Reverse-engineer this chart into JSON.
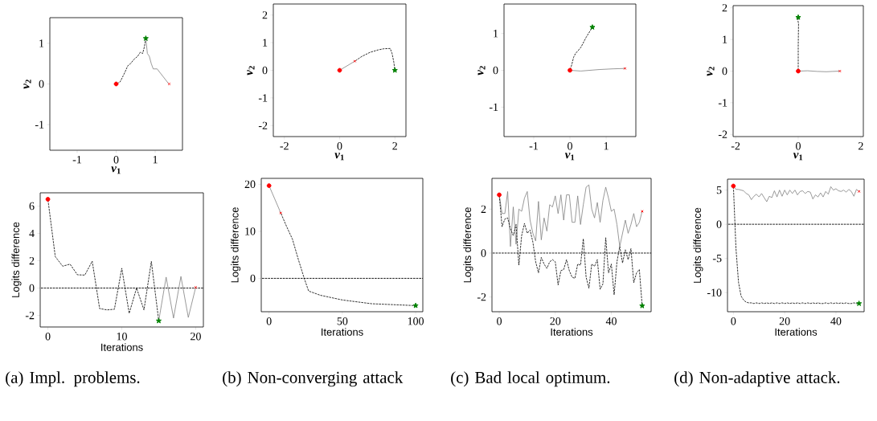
{
  "chart_data": [
    {
      "type": "line",
      "xlabel": "*v*$_{1}$",
      "ylabel": "*v*$_{2}$",
      "xlim": [
        -1.7,
        1.7
      ],
      "ylim": [
        -1.63,
        1.63
      ],
      "xticks": [
        -1,
        0,
        1
      ],
      "yticks": [
        -1,
        0,
        1
      ],
      "series": [
        {
          "type": "line",
          "color": "#808080",
          "line_style": "solid",
          "x": [
            0.76,
            0.8,
            0.85,
            0.9,
            0.95,
            1.05,
            1.35
          ],
          "values": [
            1.12,
            0.75,
            0.68,
            0.5,
            0.37,
            0.37,
            0.0
          ]
        },
        {
          "type": "line",
          "color": "#000000",
          "line_style": "dashed",
          "x": [
            0,
            0.1,
            0.18,
            0.22,
            0.3,
            0.37,
            0.45,
            0.55,
            0.62,
            0.68,
            0.72,
            0.76
          ],
          "values": [
            0,
            0.05,
            0.2,
            0.28,
            0.45,
            0.5,
            0.6,
            0.68,
            0.78,
            0.75,
            0.9,
            1.12
          ]
        },
        {
          "type": "scatter",
          "color": "#ff0000",
          "marker": "circle",
          "x": [
            0
          ],
          "values": [
            0
          ]
        },
        {
          "type": "scatter",
          "color": "#008000",
          "marker": "star",
          "x": [
            0.76
          ],
          "values": [
            1.12
          ]
        },
        {
          "type": "scatter",
          "color": "#ff0000",
          "marker": "cross",
          "x": [
            1.36
          ],
          "values": [
            0
          ]
        }
      ]
    },
    {
      "type": "line",
      "xlabel": "*v*$_{1}$",
      "ylabel": "*v*$_{2}$",
      "xlim": [
        -2.4,
        2.4
      ],
      "ylim": [
        -2.4,
        2.4
      ],
      "xticks": [
        -2,
        0,
        2
      ],
      "yticks": [
        -2,
        -1,
        0,
        1,
        2
      ],
      "series": [
        {
          "type": "line",
          "color": "#808080",
          "line_style": "solid",
          "x": [
            0,
            0.55
          ],
          "values": [
            0,
            0.33
          ]
        },
        {
          "type": "line",
          "color": "#000000",
          "line_style": "dashed",
          "x": [
            0.55,
            0.8,
            1.1,
            1.4,
            1.6,
            1.83,
            1.9,
            1.96,
            2.0
          ],
          "values": [
            0.33,
            0.5,
            0.65,
            0.74,
            0.78,
            0.79,
            0.6,
            0.3,
            0.0
          ]
        },
        {
          "type": "scatter",
          "color": "#ff0000",
          "marker": "circle",
          "x": [
            0
          ],
          "values": [
            0
          ]
        },
        {
          "type": "scatter",
          "color": "#008000",
          "marker": "star",
          "x": [
            2.0
          ],
          "values": [
            0
          ]
        },
        {
          "type": "scatter",
          "color": "#ff0000",
          "marker": "cross",
          "x": [
            0.55
          ],
          "values": [
            0.33
          ]
        }
      ]
    },
    {
      "type": "line",
      "xlabel": "*v*$_{1}$",
      "ylabel": "*v*$_{2}$",
      "xlim": [
        -1.82,
        1.82
      ],
      "ylim": [
        -1.8,
        1.8
      ],
      "xticks": [
        -1,
        0,
        1
      ],
      "yticks": [
        -1,
        0,
        1
      ],
      "series": [
        {
          "type": "line",
          "color": "#808080",
          "line_style": "solid",
          "x": [
            0,
            0.3,
            0.8,
            1.2,
            1.52
          ],
          "values": [
            0,
            -0.02,
            0.02,
            0.04,
            0.05
          ]
        },
        {
          "type": "line",
          "color": "#000000",
          "line_style": "dashed",
          "x": [
            0,
            0.05,
            0.1,
            0.15,
            0.3,
            0.45,
            0.62
          ],
          "values": [
            0,
            0.15,
            0.35,
            0.45,
            0.62,
            0.9,
            1.17
          ]
        },
        {
          "type": "scatter",
          "color": "#ff0000",
          "marker": "circle",
          "x": [
            0
          ],
          "values": [
            0
          ]
        },
        {
          "type": "scatter",
          "color": "#008000",
          "marker": "star",
          "x": [
            0.62
          ],
          "values": [
            1.17
          ]
        },
        {
          "type": "scatter",
          "color": "#ff0000",
          "marker": "cross",
          "x": [
            1.52
          ],
          "values": [
            0.05
          ]
        }
      ]
    },
    {
      "type": "line",
      "xlabel": "*v*$_{1}$",
      "ylabel": "*v*$_{2}$",
      "xlim": [
        -2.08,
        2.08
      ],
      "ylim": [
        -2.07,
        2.07
      ],
      "xticks": [
        -2,
        0,
        2
      ],
      "yticks": [
        -2,
        -1,
        0,
        1,
        2
      ],
      "series": [
        {
          "type": "line",
          "color": "#808080",
          "line_style": "solid",
          "x": [
            0,
            0.3,
            0.6,
            0.9,
            1.1,
            1.33
          ],
          "values": [
            0,
            0.01,
            -0.01,
            -0.02,
            -0.01,
            0
          ]
        },
        {
          "type": "line",
          "color": "#000000",
          "line_style": "dashed",
          "x": [
            0,
            0,
            0.01,
            -0.01,
            0
          ],
          "values": [
            0,
            0.8,
            1.5,
            1.6,
            1.7
          ]
        },
        {
          "type": "scatter",
          "color": "#ff0000",
          "marker": "circle",
          "x": [
            0
          ],
          "values": [
            0
          ]
        },
        {
          "type": "scatter",
          "color": "#008000",
          "marker": "star",
          "x": [
            0
          ],
          "values": [
            1.7
          ]
        },
        {
          "type": "scatter",
          "color": "#ff0000",
          "marker": "cross",
          "x": [
            1.33
          ],
          "values": [
            0
          ]
        }
      ]
    },
    {
      "type": "line",
      "xlabel": "Iterations",
      "ylabel": "Logits difference",
      "xlim": [
        -1.04,
        21.04
      ],
      "ylim": [
        -2.85,
        6.97
      ],
      "xticks": [
        0,
        10,
        20
      ],
      "yticks": [
        -2,
        0,
        2,
        4,
        6
      ],
      "annotations": [
        "(a) Impl. problems."
      ],
      "ref_lines": [
        {
          "axis": "y",
          "value": 0,
          "color": "#000000",
          "line_style": "dashed"
        }
      ],
      "series": [
        {
          "type": "line",
          "color": "#808080",
          "line_style": "solid",
          "x": [
            15,
            16,
            17,
            18,
            19,
            20
          ],
          "values": [
            -2.4,
            0.8,
            -2.2,
            0.85,
            -2.15,
            0.05
          ]
        },
        {
          "type": "line",
          "color": "#000000",
          "line_style": "dashed",
          "x": [
            0,
            1,
            2,
            3,
            4,
            5,
            6,
            7,
            8,
            9,
            10,
            11,
            12,
            13,
            14,
            15
          ],
          "values": [
            6.5,
            2.3,
            1.6,
            1.75,
            0.97,
            0.95,
            1.97,
            -1.5,
            -1.6,
            -1.55,
            1.45,
            -1.85,
            0,
            -1.6,
            1.95,
            -2.4
          ]
        },
        {
          "type": "scatter",
          "color": "#ff0000",
          "marker": "circle",
          "x": [
            0
          ],
          "values": [
            6.5
          ]
        },
        {
          "type": "scatter",
          "color": "#008000",
          "marker": "star",
          "x": [
            15
          ],
          "values": [
            -2.4
          ]
        },
        {
          "type": "scatter",
          "color": "#ff0000",
          "marker": "cross",
          "x": [
            20
          ],
          "values": [
            0.05
          ]
        }
      ]
    },
    {
      "type": "line",
      "xlabel": "Iterations",
      "ylabel": "Logits difference",
      "xlim": [
        -5.3,
        104.9
      ],
      "ylim": [
        -7.1,
        21.25
      ],
      "xticks": [
        0,
        50,
        100
      ],
      "yticks": [
        0,
        10,
        20
      ],
      "annotations": [
        "(b) Non-converging attack"
      ],
      "ref_lines": [
        {
          "axis": "y",
          "value": 0,
          "color": "#000000",
          "line_style": "dashed"
        }
      ],
      "series": [
        {
          "type": "line",
          "color": "#808080",
          "line_style": "solid",
          "x": [
            0,
            8
          ],
          "values": [
            19.7,
            13.9
          ]
        },
        {
          "type": "line",
          "color": "#000000",
          "line_style": "dashed",
          "x": [
            8,
            12,
            16,
            20,
            24,
            27,
            35,
            50,
            70,
            100
          ],
          "values": [
            13.9,
            11,
            8.3,
            4,
            0,
            -2.7,
            -3.6,
            -4.6,
            -5.4,
            -5.8
          ]
        },
        {
          "type": "scatter",
          "color": "#ff0000",
          "marker": "circle",
          "x": [
            0
          ],
          "values": [
            19.7
          ]
        },
        {
          "type": "scatter",
          "color": "#008000",
          "marker": "star",
          "x": [
            100
          ],
          "values": [
            -5.8
          ]
        },
        {
          "type": "scatter",
          "color": "#ff0000",
          "marker": "cross",
          "x": [
            8
          ],
          "values": [
            13.9
          ]
        }
      ]
    },
    {
      "type": "line",
      "xlabel": "Iterations",
      "ylabel": "Logits difference",
      "xlim": [
        -2.6,
        54.2
      ],
      "ylim": [
        -2.67,
        3.4
      ],
      "xticks": [
        0,
        20,
        40
      ],
      "yticks": [
        -2,
        0,
        2
      ],
      "annotations": [
        "(c) Bad local optimum."
      ],
      "ref_lines": [
        {
          "axis": "y",
          "value": 0,
          "color": "#000000",
          "line_style": "dashed"
        }
      ],
      "series": [
        {
          "type": "line",
          "color": "#808080",
          "line_style": "solid",
          "x": [
            0,
            1,
            2,
            3,
            4,
            5,
            6,
            7,
            8,
            9,
            10,
            11,
            12,
            13,
            14,
            15,
            16,
            17,
            18,
            19,
            20,
            21,
            22,
            23,
            24,
            25,
            26,
            27,
            28,
            29,
            30,
            31,
            32,
            33,
            34,
            35,
            36,
            37,
            38,
            39,
            40,
            41,
            42,
            43,
            44,
            45,
            46,
            47,
            48,
            49,
            50,
            51
          ],
          "values": [
            2.65,
            1.8,
            1.8,
            2.8,
            0.3,
            2.1,
            0.4,
            2.0,
            1.9,
            2.5,
            2.8,
            1.5,
            0.9,
            0.55,
            2.35,
            0.6,
            1.6,
            1.0,
            2.2,
            2.1,
            2.6,
            1.8,
            2.65,
            1.5,
            2.65,
            2.65,
            1.4,
            1.4,
            2.6,
            1.3,
            2.2,
            3.0,
            3.1,
            2.0,
            1.6,
            2.3,
            1.4,
            2.4,
            3.0,
            2.5,
            1.9,
            2.0,
            1.3,
            0.3,
            0.9,
            1.5,
            0.9,
            1.3,
            1.8,
            1.2,
            1.4,
            1.9
          ]
        },
        {
          "type": "line",
          "color": "#000000",
          "line_style": "dashed",
          "x": [
            0,
            1,
            2,
            3,
            4,
            5,
            6,
            7,
            8,
            9,
            10,
            11,
            12,
            13,
            14,
            15,
            16,
            17,
            18,
            19,
            20,
            21,
            22,
            23,
            24,
            25,
            26,
            27,
            28,
            29,
            30,
            31,
            32,
            33,
            34,
            35,
            36,
            37,
            38,
            39,
            40,
            41,
            42,
            43,
            44,
            45,
            46,
            47,
            48,
            49,
            50,
            51
          ],
          "values": [
            2.65,
            1.2,
            1.55,
            1.6,
            1.1,
            0.8,
            1.3,
            -0.55,
            0.8,
            1.35,
            0.9,
            1.05,
            0.5,
            -0.4,
            -0.9,
            -0.2,
            -0.5,
            -0.7,
            -0.4,
            -0.3,
            -0.4,
            -1.45,
            -0.8,
            -0.75,
            -0.3,
            -0.8,
            -1.1,
            -1.15,
            -0.5,
            -0.55,
            0.65,
            -1.1,
            -1.6,
            -0.5,
            -0.6,
            -0.3,
            -1.65,
            -1.4,
            0.7,
            -0.9,
            -0.5,
            -1.9,
            -0.4,
            0.3,
            -0.45,
            0.15,
            -0.3,
            0.2,
            -1.35,
            -0.9,
            -0.75,
            -2.4
          ]
        },
        {
          "type": "scatter",
          "color": "#ff0000",
          "marker": "circle",
          "x": [
            0
          ],
          "values": [
            2.65
          ]
        },
        {
          "type": "scatter",
          "color": "#008000",
          "marker": "star",
          "x": [
            51
          ],
          "values": [
            -2.4
          ]
        },
        {
          "type": "scatter",
          "color": "#ff0000",
          "marker": "cross",
          "x": [
            51
          ],
          "values": [
            1.9
          ]
        }
      ]
    },
    {
      "type": "line",
      "xlabel": "Iterations",
      "ylabel": "Logits difference",
      "xlim": [
        -2.3,
        51
      ],
      "ylim": [
        -12.8,
        6.6
      ],
      "xticks": [
        0,
        20,
        40
      ],
      "yticks": [
        -10,
        -5,
        0,
        5
      ],
      "annotations": [
        "(d) Non-adaptive attack."
      ],
      "ref_lines": [
        {
          "axis": "y",
          "value": 0,
          "color": "#000000",
          "line_style": "dashed"
        }
      ],
      "series": [
        {
          "type": "line",
          "color": "#808080",
          "line_style": "solid",
          "x": [
            0,
            1,
            2,
            3,
            4,
            5,
            6,
            7,
            8,
            9,
            10,
            11,
            12,
            13,
            14,
            15,
            16,
            17,
            18,
            19,
            20,
            21,
            22,
            23,
            24,
            25,
            26,
            27,
            28,
            29,
            30,
            31,
            32,
            33,
            34,
            35,
            36,
            37,
            38,
            39,
            40,
            41,
            42,
            43,
            44,
            45,
            46,
            47,
            48,
            49
          ],
          "values": [
            5.6,
            5.1,
            5.1,
            5.0,
            4.9,
            4.5,
            4.3,
            3.6,
            4.1,
            4.4,
            4.0,
            4.5,
            3.9,
            3.3,
            4.1,
            3.9,
            4.9,
            4.0,
            5.0,
            4.1,
            5.0,
            4.3,
            5.0,
            4.5,
            5.0,
            4.3,
            4.8,
            4.9,
            4.5,
            4.8,
            4.7,
            3.7,
            4.3,
            4.0,
            4.6,
            4.0,
            4.8,
            4.4,
            5.5,
            5.0,
            5.2,
            4.9,
            4.8,
            5.0,
            4.7,
            5.1,
            4.8,
            4.1,
            5.1,
            4.8
          ]
        },
        {
          "type": "line",
          "color": "#000000",
          "line_style": "dashed",
          "x": [
            0,
            1,
            2,
            3,
            4,
            5,
            6,
            7,
            8,
            9,
            10,
            11,
            12,
            13,
            14,
            15,
            16,
            17,
            18,
            19,
            20,
            21,
            22,
            23,
            24,
            25,
            26,
            27,
            28,
            29,
            30,
            31,
            32,
            33,
            34,
            35,
            36,
            37,
            38,
            39,
            40,
            41,
            42,
            43,
            44,
            45,
            46,
            47,
            48,
            49
          ],
          "values": [
            5.6,
            -3.5,
            -8.5,
            -10.5,
            -11.1,
            -11.4,
            -11.5,
            -11.5,
            -11.6,
            -11.5,
            -11.6,
            -11.5,
            -11.6,
            -11.5,
            -11.6,
            -11.5,
            -11.6,
            -11.5,
            -11.6,
            -11.5,
            -11.6,
            -11.5,
            -11.6,
            -11.5,
            -11.6,
            -11.5,
            -11.6,
            -11.5,
            -11.6,
            -11.5,
            -11.6,
            -11.5,
            -11.6,
            -11.5,
            -11.6,
            -11.6,
            -11.5,
            -11.6,
            -11.5,
            -11.6,
            -11.5,
            -11.6,
            -11.5,
            -11.6,
            -11.5,
            -11.6,
            -11.6,
            -11.5,
            -11.6,
            -11.6
          ]
        },
        {
          "type": "scatter",
          "color": "#ff0000",
          "marker": "circle",
          "x": [
            0
          ],
          "values": [
            5.6
          ]
        },
        {
          "type": "scatter",
          "color": "#008000",
          "marker": "star",
          "x": [
            49
          ],
          "values": [
            -11.6
          ]
        },
        {
          "type": "scatter",
          "color": "#ff0000",
          "marker": "cross",
          "x": [
            49
          ],
          "values": [
            4.8
          ]
        }
      ]
    }
  ]
}
